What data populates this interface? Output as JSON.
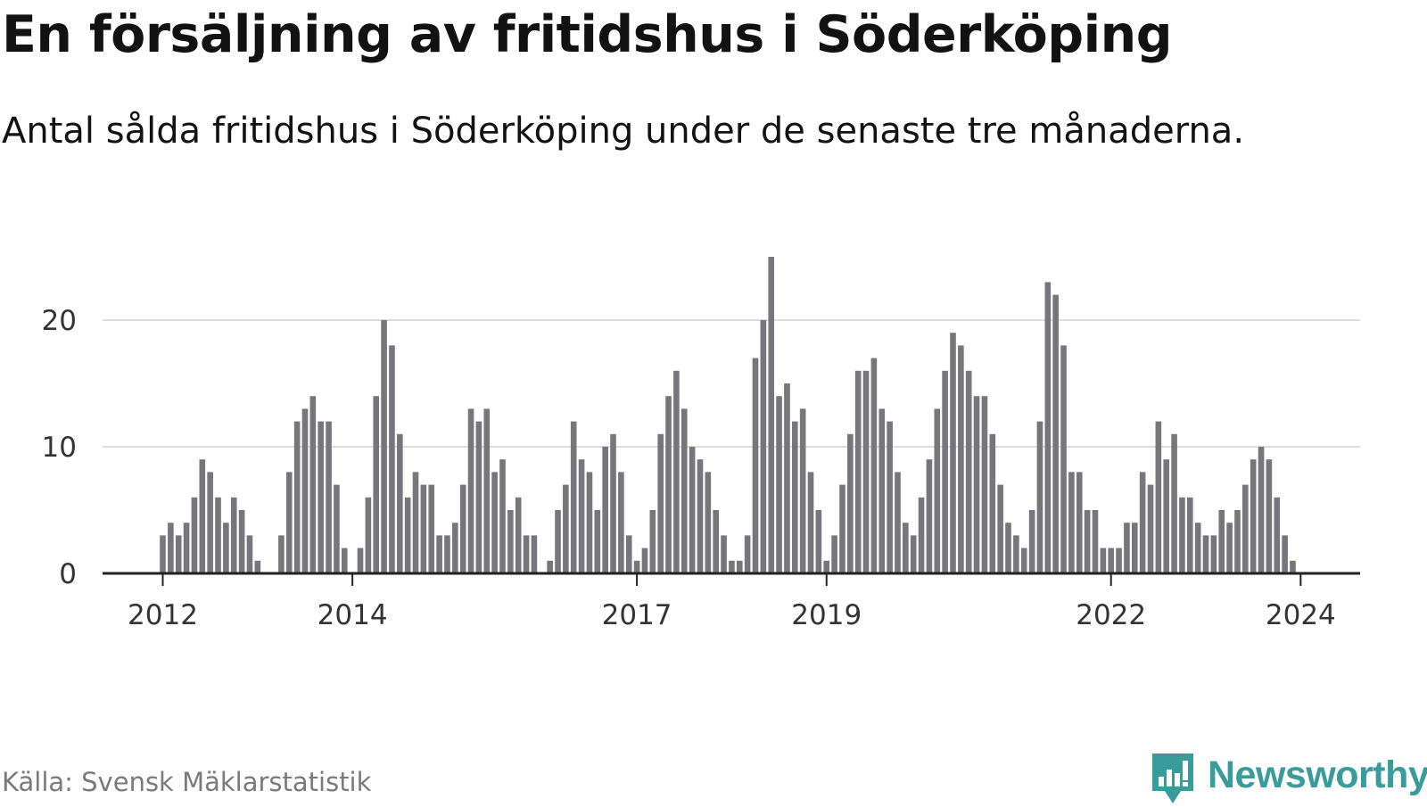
{
  "title": "En försäljning av fritidshus i Söderköping",
  "subtitle": "Antal sålda fritidshus i Söderköping under de senaste tre månaderna.",
  "source": "Källa: Svensk Mäklarstatistik",
  "logo": {
    "text": "Newsworthy",
    "icon": "newsworthy-chart-icon",
    "color": "#3a9b9b"
  },
  "colors": {
    "bar": "#77767c",
    "highlight": "#29a7a0",
    "grid": "#dddddd",
    "axis": "#222222"
  },
  "chart_data": {
    "type": "bar",
    "title": "En försäljning av fritidshus i Söderköping",
    "xlabel": "",
    "ylabel": "",
    "ylim": [
      0,
      26
    ],
    "yticks": [
      0,
      10,
      20
    ],
    "grid": true,
    "start": {
      "year": 2012,
      "month": 1
    },
    "xtick_years": [
      2012,
      2014,
      2017,
      2019,
      2022,
      2024
    ],
    "values": [
      3,
      4,
      3,
      4,
      6,
      9,
      8,
      6,
      4,
      6,
      5,
      3,
      1,
      0,
      0,
      3,
      8,
      12,
      13,
      14,
      12,
      12,
      7,
      2,
      0,
      2,
      6,
      14,
      20,
      18,
      11,
      6,
      8,
      7,
      7,
      3,
      3,
      4,
      7,
      13,
      12,
      13,
      8,
      9,
      5,
      6,
      3,
      3,
      0,
      1,
      5,
      7,
      12,
      9,
      8,
      5,
      10,
      11,
      8,
      3,
      1,
      2,
      5,
      11,
      14,
      16,
      13,
      10,
      9,
      8,
      5,
      3,
      1,
      1,
      3,
      17,
      20,
      25,
      14,
      15,
      12,
      13,
      8,
      5,
      1,
      3,
      7,
      11,
      16,
      16,
      17,
      13,
      12,
      8,
      4,
      3,
      6,
      9,
      13,
      16,
      19,
      18,
      16,
      14,
      14,
      11,
      7,
      4,
      3,
      2,
      5,
      12,
      23,
      22,
      18,
      8,
      8,
      5,
      5,
      2,
      2,
      2,
      4,
      4,
      8,
      7,
      12,
      9,
      11,
      6,
      6,
      4,
      3,
      3,
      5,
      4,
      5,
      7,
      9,
      10,
      9,
      6,
      3,
      1
    ],
    "highlight_index": 144,
    "highlight_label": "1"
  }
}
